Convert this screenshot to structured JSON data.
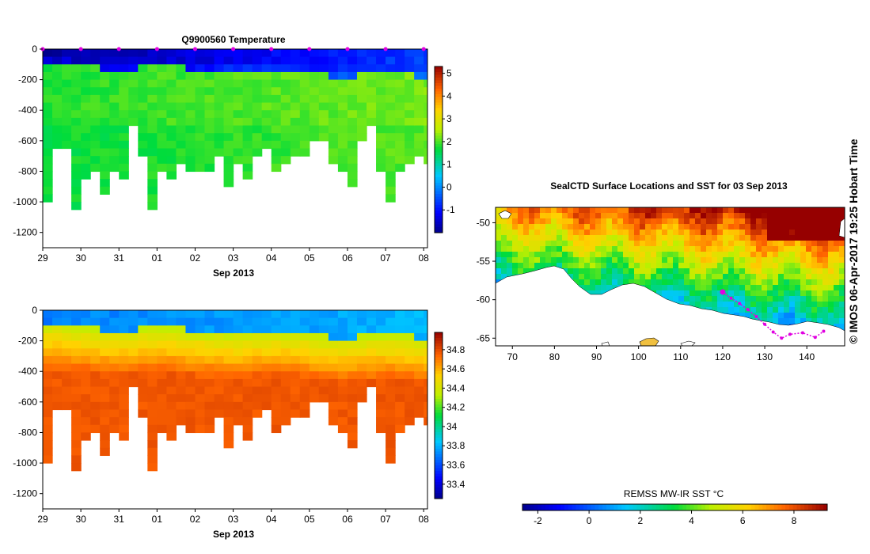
{
  "chart_data": [
    {
      "type": "heatmap",
      "title": "Q9900560  Temperature",
      "xlabel": "Sep 2013",
      "ylabel": "",
      "x_ticks": [
        "29",
        "30",
        "31",
        "01",
        "02",
        "03",
        "04",
        "05",
        "06",
        "07",
        "08"
      ],
      "x_range": [
        29,
        39.1
      ],
      "y_ticks": [
        0,
        -200,
        -400,
        -600,
        -800,
        -1000,
        -1200
      ],
      "ylim": [
        -1300,
        0
      ],
      "profile_times": [
        29.0,
        29.25,
        29.5,
        29.75,
        30.0,
        30.25,
        30.5,
        30.75,
        31.0,
        31.25,
        31.5,
        31.75,
        32.0,
        32.25,
        32.5,
        32.75,
        33.0,
        33.25,
        33.5,
        33.75,
        34.0,
        34.25,
        34.5,
        34.75,
        35.0,
        35.25,
        35.5,
        35.75,
        36.0,
        36.25,
        36.5,
        36.75,
        37.0,
        37.25,
        37.5,
        37.75,
        38.0,
        38.25,
        38.5,
        38.75,
        39.0
      ],
      "profile_max_depth": [
        -970,
        -610,
        -615,
        -1030,
        -820,
        -760,
        -930,
        -760,
        -810,
        -500,
        -660,
        -1040,
        -760,
        -830,
        -720,
        -770,
        -780,
        -780,
        -700,
        -870,
        -730,
        -850,
        -690,
        -620,
        -780,
        -720,
        -690,
        -660,
        -560,
        -570,
        -720,
        -790,
        -860,
        -560,
        -470,
        -760,
        -1000,
        -760,
        -720,
        -690,
        -740
      ],
      "colorbar": {
        "min": -2,
        "max": 5.3,
        "ticks": [
          5,
          4,
          3,
          2,
          1,
          0,
          -1
        ]
      },
      "sampling_marks": [
        29.0,
        30.0,
        31.0,
        32.0,
        33.0,
        34.0,
        35.0,
        36.0,
        37.0,
        38.0,
        39.0
      ]
    },
    {
      "type": "heatmap",
      "title": "",
      "xlabel": "Sep 2013",
      "ylabel": "",
      "x_ticks": [
        "29",
        "30",
        "31",
        "01",
        "02",
        "03",
        "04",
        "05",
        "06",
        "07",
        "08"
      ],
      "x_range": [
        29,
        39.1
      ],
      "y_ticks": [
        0,
        -200,
        -400,
        -600,
        -800,
        -1000,
        -1200
      ],
      "ylim": [
        -1300,
        0
      ],
      "colorbar": {
        "min": 33.25,
        "max": 34.98,
        "ticks": [
          34.8,
          34.6,
          34.4,
          34.2,
          34,
          33.8,
          33.6,
          33.4
        ]
      }
    },
    {
      "type": "heatmap",
      "title": "SealCTD Surface Locations and SST for 03 Sep 2013",
      "xlabel": "",
      "ylabel": "",
      "x_ticks": [
        70,
        80,
        90,
        100,
        110,
        120,
        130,
        140
      ],
      "xlim": [
        66,
        149
      ],
      "y_ticks": [
        -50,
        -55,
        -60,
        -65
      ],
      "ylim": [
        -66,
        -48
      ],
      "track_points": [
        [
          120,
          -59
        ],
        [
          122,
          -59.8
        ],
        [
          124,
          -60.5
        ],
        [
          126,
          -61.3
        ],
        [
          128,
          -62.2
        ],
        [
          130,
          -63.2
        ],
        [
          132,
          -64.2
        ],
        [
          134,
          -65
        ],
        [
          136,
          -64.5
        ],
        [
          139,
          -64.3
        ],
        [
          142,
          -64.9
        ],
        [
          144,
          -64.1
        ]
      ],
      "colorbar": {
        "label": "REMSS MW-IR SST °C",
        "min": -2.6,
        "max": 9.3,
        "ticks": [
          -2,
          0,
          2,
          4,
          6,
          8
        ]
      }
    }
  ],
  "watermark": "© IMOS 06-Apr-2017 19:25 Hobart Time",
  "colors": {
    "marker": "#e000e0",
    "land": "#ffffff"
  }
}
